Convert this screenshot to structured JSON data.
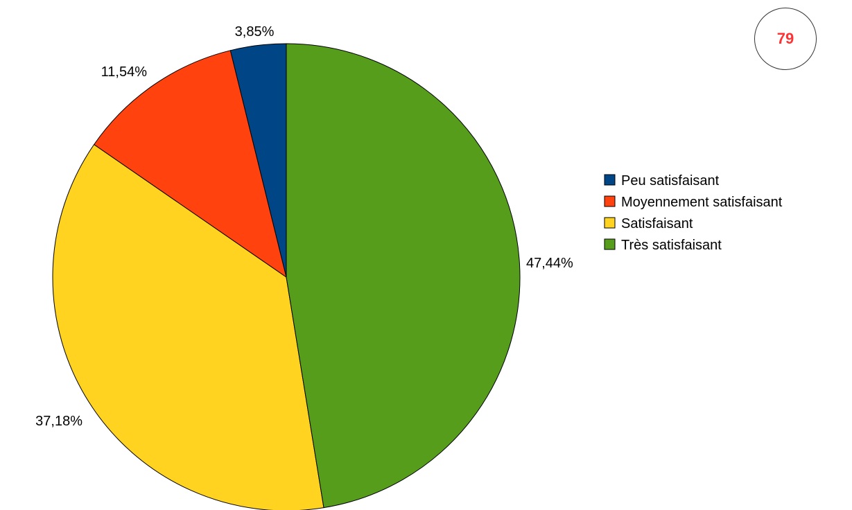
{
  "page_badge": "79",
  "chart_data": {
    "type": "pie",
    "start": "12 o'clock",
    "direction": "counterclockwise",
    "legend_position": "right",
    "categories": [
      "Peu satisfaisant",
      "Moyennement satisfaisant",
      "Satisfaisant",
      "Très satisfaisant"
    ],
    "values": [
      3.85,
      11.54,
      37.18,
      47.44
    ],
    "value_labels": [
      "3,85%",
      "11,54%",
      "37,18%",
      "47,44%"
    ],
    "colors": [
      "#004586",
      "#ff420e",
      "#ffd320",
      "#579d1c"
    ]
  }
}
